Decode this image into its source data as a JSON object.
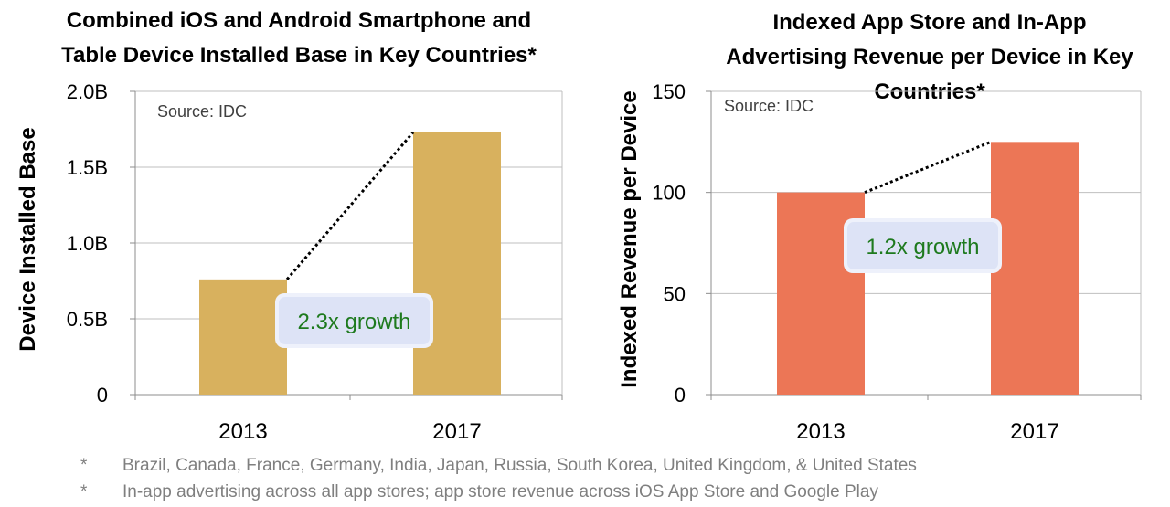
{
  "chart_data": [
    {
      "type": "bar",
      "title_lines": [
        "Combined iOS and Android Smartphone and",
        "Table Device Installed Base in Key Countries*"
      ],
      "ylabel": "Device Installed Base",
      "xlabel": "",
      "categories": [
        "2013",
        "2017"
      ],
      "values": [
        0.76,
        1.73
      ],
      "ylim": [
        0,
        2.0
      ],
      "yticks": [
        0,
        0.5,
        1.0,
        1.5,
        2.0
      ],
      "ytick_labels": [
        "0",
        "0.5B",
        "1.0B",
        "1.5B",
        "2.0B"
      ],
      "source": "Source: IDC",
      "annotation": "2.3x growth",
      "bar_color": "#d8b15e",
      "grid": true
    },
    {
      "type": "bar",
      "title_lines": [
        "Indexed App Store and In-App",
        "Advertising Revenue per Device in Key",
        "Countries*"
      ],
      "ylabel": "Indexed Revenue per Device",
      "xlabel": "",
      "categories": [
        "2013",
        "2017"
      ],
      "values": [
        100,
        125
      ],
      "ylim": [
        0,
        150
      ],
      "yticks": [
        0,
        50,
        100,
        150
      ],
      "ytick_labels": [
        "0",
        "50",
        "100",
        "150"
      ],
      "source": "Source: IDC",
      "annotation": "1.2x growth",
      "bar_color": "#ec7656",
      "grid": true
    }
  ],
  "footnotes": [
    {
      "marker": "*",
      "text": "Brazil, Canada, France, Germany, India, Japan, Russia, South Korea, United Kingdom, & United States"
    },
    {
      "marker": "*",
      "text": "In-app advertising across all app stores; app store revenue across iOS App Store and Google Play"
    }
  ]
}
